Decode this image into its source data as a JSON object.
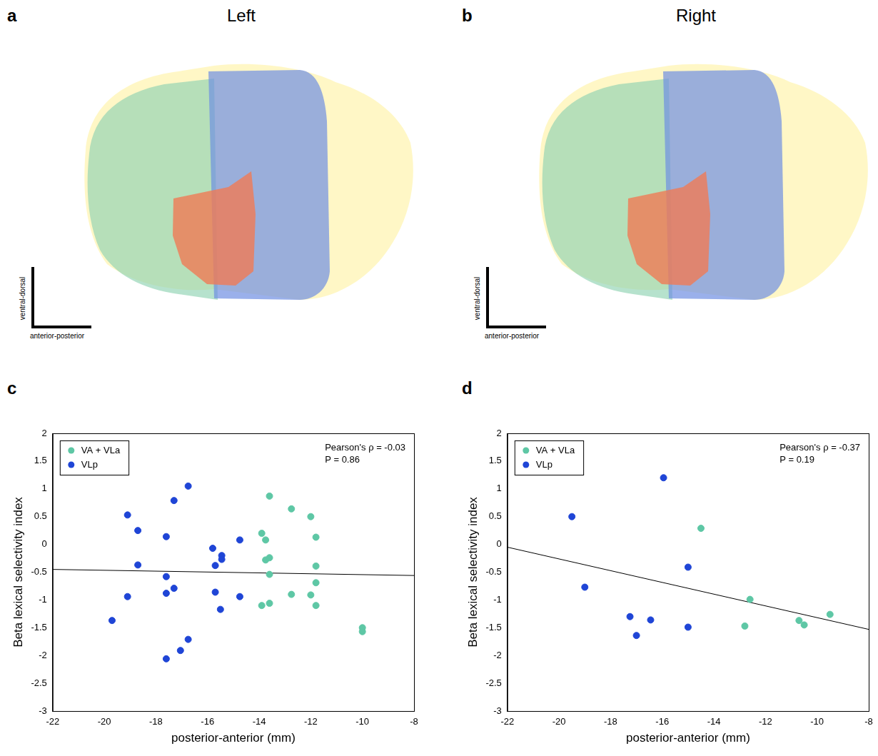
{
  "figure": {
    "panels": [
      {
        "panel": "a",
        "title": "Left",
        "scale_bar": {
          "vertical": "ventral-dorsal",
          "horizontal": "anterior-posterior"
        }
      },
      {
        "panel": "b",
        "title": "Right",
        "scale_bar": {
          "vertical": "ventral-dorsal",
          "horizontal": "anterior-posterior"
        }
      }
    ]
  },
  "chart_data": [
    {
      "panel": "c",
      "type": "scatter",
      "x_label": "posterior-anterior (mm)",
      "y_label": "Beta lexical selectivity index",
      "xlim": [
        -22,
        -8
      ],
      "xticks": [
        -22,
        -20,
        -18,
        -16,
        -14,
        -12,
        -10,
        -8
      ],
      "ylim": [
        -3,
        2
      ],
      "yticks": [
        -3,
        -2.5,
        -2,
        -1.5,
        -1,
        -0.5,
        0,
        0.5,
        1,
        1.5,
        2
      ],
      "grid": false,
      "legend": "upper left",
      "annotations": [
        "Pearson's ρ = -0.03",
        "P = 0.86"
      ],
      "series": [
        {
          "name": "VA + VLa",
          "color": "#5ec7a5",
          "marker": "circle",
          "x": [
            -13.6,
            -13.9,
            -13.75,
            -13.75,
            -13.6,
            -13.6,
            -13.9,
            -13.6,
            -12.75,
            -12.75,
            -12.0,
            -11.8,
            -11.8,
            -11.8,
            -11.8,
            -12.0,
            -10.0,
            -10.0
          ],
          "values": [
            0.87,
            0.2,
            0.08,
            -0.28,
            -0.24,
            -0.54,
            -1.1,
            -1.06,
            0.64,
            -0.9,
            0.5,
            0.13,
            -0.39,
            -0.69,
            -1.1,
            -0.91,
            -1.5,
            -1.57
          ]
        },
        {
          "name": "VLp",
          "color": "#1f45d6",
          "marker": "circle",
          "x": [
            -19.1,
            -18.7,
            -16.75,
            -17.3,
            -18.7,
            -19.1,
            -19.7,
            -17.6,
            -17.6,
            -17.6,
            -17.3,
            -16.75,
            -17.05,
            -17.6,
            -15.8,
            -15.7,
            -15.7,
            -15.45,
            -15.45,
            -15.5,
            -14.75,
            -14.75
          ],
          "values": [
            0.53,
            0.25,
            1.05,
            0.79,
            -0.37,
            -0.94,
            -1.37,
            0.14,
            -0.58,
            -0.88,
            -0.79,
            -1.71,
            -1.91,
            -2.06,
            -0.07,
            -0.38,
            -0.86,
            -0.2,
            -0.27,
            -1.17,
            0.08,
            -0.94
          ]
        }
      ],
      "fit_line": {
        "color": "#000000",
        "x": [
          -22,
          -8
        ],
        "y": [
          -0.45,
          -0.56
        ]
      }
    },
    {
      "panel": "d",
      "type": "scatter",
      "x_label": "posterior-anterior (mm)",
      "y_label": "Beta lexical selectivity index",
      "xlim": [
        -22,
        -8
      ],
      "xticks": [
        -22,
        -20,
        -18,
        -16,
        -14,
        -12,
        -10,
        -8
      ],
      "ylim": [
        -3,
        2
      ],
      "yticks": [
        -3,
        -2.5,
        -2,
        -1.5,
        -1,
        -0.5,
        0,
        0.5,
        1,
        1.5,
        2
      ],
      "grid": false,
      "legend": "upper left",
      "annotations": [
        "Pearson's ρ = -0.37",
        "P = 0.19"
      ],
      "series": [
        {
          "name": "VA + VLa",
          "color": "#5ec7a5",
          "marker": "circle",
          "x": [
            -14.5,
            -12.6,
            -12.8,
            -10.7,
            -10.5,
            -9.5
          ],
          "values": [
            0.29,
            -0.99,
            -1.47,
            -1.37,
            -1.45,
            -1.26
          ]
        },
        {
          "name": "VLp",
          "color": "#1f45d6",
          "marker": "circle",
          "x": [
            -19.5,
            -19.0,
            -15.95,
            -17.25,
            -17.0,
            -16.45,
            -15.0,
            -15.0
          ],
          "values": [
            0.5,
            -0.77,
            1.2,
            -1.3,
            -1.64,
            -1.36,
            -0.41,
            -1.49
          ]
        }
      ],
      "fit_line": {
        "color": "#000000",
        "x": [
          -22,
          -8
        ],
        "y": [
          -0.05,
          -1.53
        ]
      }
    }
  ]
}
